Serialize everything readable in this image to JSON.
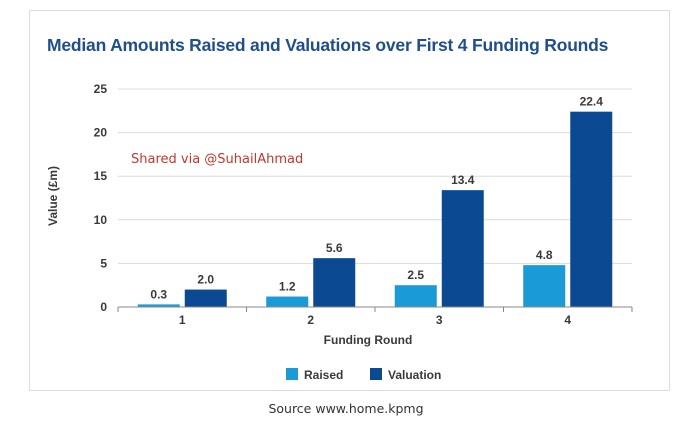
{
  "chart_data": {
    "type": "bar",
    "title": "Median Amounts Raised and Valuations over First 4 Funding Rounds",
    "xlabel": "Funding Round",
    "ylabel": "Value (£m)",
    "categories": [
      "1",
      "2",
      "3",
      "4"
    ],
    "ylim": [
      0,
      25
    ],
    "yticks": [
      0,
      5,
      10,
      15,
      20,
      25
    ],
    "grid": true,
    "legend_position": "bottom",
    "series": [
      {
        "name": "Raised",
        "values": [
          0.3,
          1.2,
          2.5,
          4.8
        ],
        "labels": [
          "0.3",
          "1.2",
          "2.5",
          "4.8"
        ],
        "color": "#1a9ad6"
      },
      {
        "name": "Valuation",
        "values": [
          2.0,
          5.6,
          13.4,
          22.4
        ],
        "labels": [
          "2.0",
          "5.6",
          "13.4",
          "22.4"
        ],
        "color": "#0b4a92"
      }
    ]
  },
  "watermark": "Shared via @SuhailAhmad",
  "source": "Source www.home.kpmg"
}
